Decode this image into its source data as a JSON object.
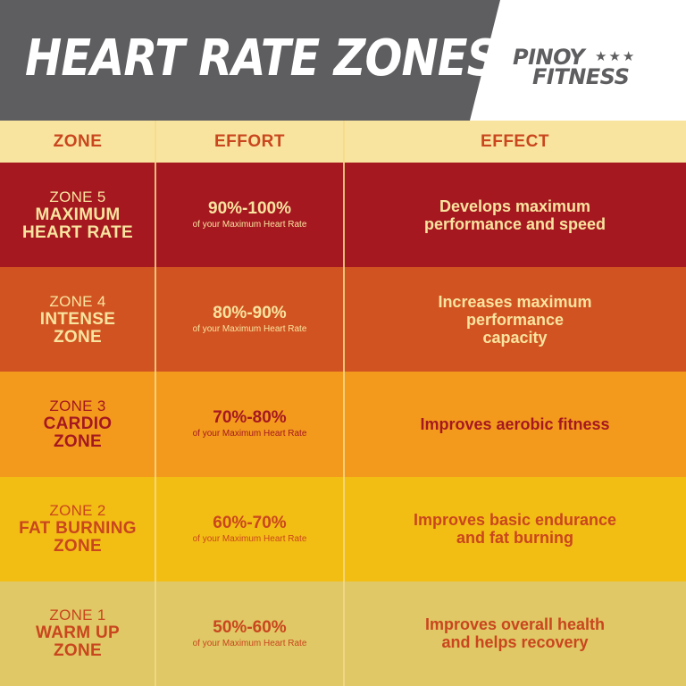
{
  "header": {
    "title": "HEART RATE ZONES",
    "logo_line1": "PINOY",
    "logo_stars": "★★★",
    "logo_line2": "FITNESS",
    "background_color": "#5e5e60"
  },
  "table": {
    "columns": [
      "ZONE",
      "EFFORT",
      "EFFECT"
    ],
    "header_color": "#f9e49f",
    "rows": [
      {
        "zone_number": "ZONE 5",
        "zone_name": "MAXIMUM\nHEART RATE",
        "effort": "90%-100%",
        "effort_note": "of your Maximum Heart Rate",
        "effect": "Develops maximum\nperformance and speed",
        "background": "#a51820",
        "text_color": "#f9e49f"
      },
      {
        "zone_number": "ZONE 4",
        "zone_name": "INTENSE\nZONE",
        "effort": "80%-90%",
        "effort_note": "of your Maximum Heart Rate",
        "effect": "Increases maximum\nperformance\ncapacity",
        "background": "#d15321",
        "text_color": "#f9e49f"
      },
      {
        "zone_number": "ZONE 3",
        "zone_name": "CARDIO\nZONE",
        "effort": "70%-80%",
        "effort_note": "of your Maximum Heart Rate",
        "effect": "Improves aerobic fitness",
        "background": "#f39a1d",
        "text_color": "#a51820"
      },
      {
        "zone_number": "ZONE 2",
        "zone_name": "FAT BURNING\nZONE",
        "effort": "60%-70%",
        "effort_note": "of your Maximum Heart Rate",
        "effect": "Improves basic endurance\nand fat burning",
        "background": "#f3be14",
        "text_color": "#c9461e"
      },
      {
        "zone_number": "ZONE 1",
        "zone_name": "WARM UP\nZONE",
        "effort": "50%-60%",
        "effort_note": "of your Maximum Heart Rate",
        "effect": "Improves overall health\nand helps recovery",
        "background": "#dfc865",
        "text_color": "#c9461e"
      }
    ]
  }
}
